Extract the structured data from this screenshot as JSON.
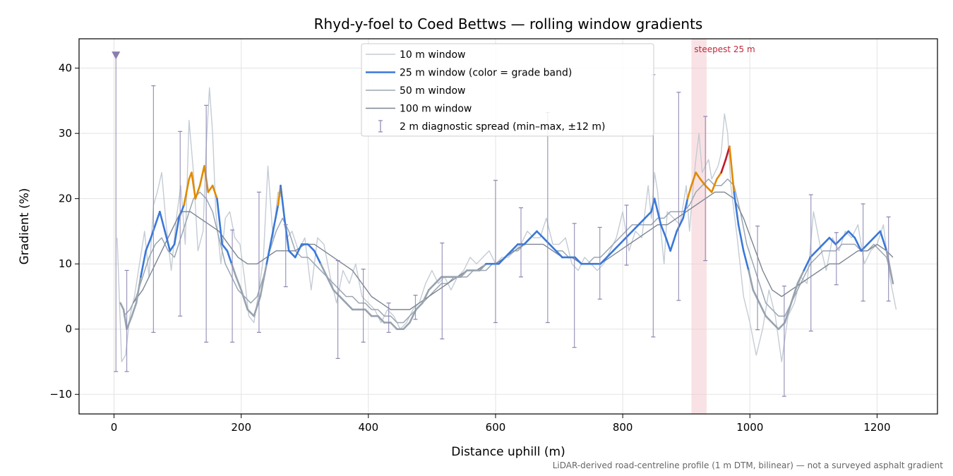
{
  "chart_data": {
    "type": "line",
    "title": "Rhyd-y-foel to Coed Bettws — rolling window gradients",
    "xlabel": "Distance uphill (m)",
    "ylabel": "Gradient (%)",
    "xlim": [
      -55,
      1295
    ],
    "ylim": [
      -13,
      44.5
    ],
    "xticks": [
      0,
      200,
      400,
      600,
      800,
      1000,
      1200
    ],
    "yticks": [
      -10,
      0,
      10,
      20,
      30,
      40
    ],
    "xtick_labels": [
      "0",
      "200",
      "400",
      "600",
      "800",
      "1000",
      "1200"
    ],
    "ytick_labels": [
      "−10",
      "0",
      "10",
      "20",
      "30",
      "40"
    ],
    "grid": true,
    "legend_position": "top-center",
    "footnote": "LiDAR-derived road-centreline profile (1 m DTM, bilinear) — not a surveyed asphalt gradient",
    "highlight": {
      "label": "steepest 25 m",
      "x0": 908,
      "x1": 932,
      "color": "#f4c6cc"
    },
    "start_marker": {
      "x": 3,
      "y": 42,
      "color": "#8a7db0"
    },
    "grade_band_colors": {
      "easy": "#3a78d8",
      "steep": "#e08a00",
      "very_steep": "#c0182c"
    },
    "series": [
      {
        "name": "10 m window",
        "color": "#c4ccd4",
        "width": 1.4,
        "x": [
          5,
          12,
          18,
          25,
          32,
          40,
          48,
          55,
          62,
          68,
          75,
          82,
          90,
          98,
          105,
          112,
          118,
          125,
          132,
          140,
          145,
          150,
          155,
          160,
          168,
          175,
          182,
          190,
          198,
          205,
          212,
          220,
          228,
          235,
          242,
          250,
          258,
          265,
          272,
          280,
          290,
          300,
          310,
          320,
          330,
          340,
          350,
          360,
          370,
          380,
          390,
          400,
          410,
          420,
          430,
          440,
          450,
          460,
          470,
          480,
          490,
          500,
          510,
          520,
          530,
          540,
          550,
          560,
          570,
          580,
          590,
          600,
          610,
          620,
          630,
          640,
          650,
          660,
          670,
          680,
          690,
          700,
          710,
          720,
          730,
          740,
          750,
          760,
          770,
          780,
          790,
          800,
          810,
          820,
          830,
          840,
          845,
          850,
          855,
          860,
          865,
          870,
          880,
          890,
          900,
          905,
          910,
          915,
          920,
          925,
          930,
          935,
          940,
          945,
          950,
          955,
          960,
          965,
          970,
          980,
          990,
          1000,
          1010,
          1020,
          1030,
          1040,
          1050,
          1060,
          1070,
          1080,
          1090,
          1100,
          1110,
          1120,
          1130,
          1140,
          1150,
          1160,
          1170,
          1180,
          1190,
          1200,
          1210,
          1220,
          1230
        ],
        "y": [
          14,
          -5,
          -4,
          2,
          5,
          10,
          15,
          8,
          19,
          21,
          24,
          16,
          9,
          17,
          22,
          13,
          32,
          24,
          12,
          15,
          28,
          37,
          30,
          18,
          10,
          17,
          18,
          14,
          13,
          8,
          2,
          1,
          6,
          11,
          25,
          14,
          21,
          20,
          14,
          15,
          12,
          14,
          6,
          14,
          13,
          8,
          4,
          9,
          7,
          10,
          5,
          4,
          3,
          1,
          3,
          2,
          0,
          1,
          3,
          4,
          7,
          9,
          7,
          8,
          6,
          8,
          9,
          11,
          10,
          11,
          12,
          10,
          11,
          11,
          12,
          13,
          15,
          14,
          14,
          17,
          13,
          13,
          14,
          10,
          9,
          11,
          10,
          9,
          10,
          12,
          14,
          18,
          12,
          15,
          14,
          22,
          17,
          24,
          21,
          15,
          10,
          18,
          17,
          16,
          22,
          15,
          21,
          26,
          30,
          24,
          25,
          26,
          23,
          24,
          25,
          27,
          33,
          30,
          22,
          14,
          5,
          1,
          -4,
          0,
          6,
          2,
          -5,
          2,
          4,
          8,
          7,
          18,
          13,
          9,
          14,
          12,
          15,
          14,
          16,
          10,
          12,
          13,
          16,
          8,
          3
        ]
      },
      {
        "name": "25 m window (color = grade band)",
        "color": "#3a78d8",
        "width": 2.6,
        "x": [
          10,
          15,
          20,
          28,
          35,
          42,
          50,
          58,
          65,
          72,
          80,
          88,
          95,
          102,
          110,
          118,
          122,
          128,
          135,
          142,
          148,
          155,
          162,
          170,
          178,
          185,
          192,
          200,
          210,
          220,
          230,
          240,
          250,
          258,
          262,
          268,
          275,
          285,
          295,
          305,
          315,
          325,
          335,
          345,
          355,
          365,
          375,
          385,
          395,
          405,
          415,
          425,
          435,
          445,
          455,
          465,
          475,
          485,
          495,
          505,
          515,
          525,
          535,
          545,
          555,
          565,
          575,
          585,
          595,
          605,
          615,
          625,
          635,
          645,
          655,
          665,
          675,
          685,
          695,
          705,
          715,
          725,
          735,
          745,
          755,
          765,
          775,
          785,
          795,
          805,
          815,
          825,
          835,
          845,
          850,
          855,
          860,
          868,
          875,
          885,
          895,
          902,
          908,
          915,
          922,
          930,
          940,
          948,
          955,
          962,
          968,
          975,
          982,
          990,
          998,
          1005,
          1015,
          1025,
          1035,
          1045,
          1055,
          1065,
          1075,
          1085,
          1095,
          1105,
          1115,
          1125,
          1135,
          1145,
          1155,
          1165,
          1175,
          1185,
          1195,
          1205,
          1215,
          1225
        ],
        "y": [
          4,
          3,
          0,
          2,
          4,
          8,
          12,
          14,
          16,
          18,
          15,
          12,
          13,
          17,
          19,
          23,
          24,
          20,
          22,
          25,
          21,
          22,
          20,
          13,
          12,
          10,
          8,
          6,
          3,
          2,
          5,
          10,
          15,
          19,
          22,
          17,
          12,
          11,
          13,
          13,
          12,
          10,
          8,
          6,
          5,
          4,
          3,
          3,
          3,
          2,
          2,
          1,
          1,
          0,
          0,
          1,
          3,
          4,
          6,
          7,
          8,
          8,
          8,
          8,
          9,
          9,
          9,
          10,
          10,
          10,
          11,
          12,
          13,
          13,
          14,
          15,
          14,
          13,
          12,
          11,
          11,
          11,
          10,
          10,
          10,
          10,
          11,
          12,
          13,
          14,
          15,
          16,
          17,
          18,
          20,
          18,
          16,
          14,
          12,
          15,
          17,
          20,
          22,
          24,
          23,
          22,
          21,
          23,
          24,
          26,
          28,
          21,
          16,
          12,
          9,
          6,
          4,
          2,
          1,
          0,
          1,
          4,
          7,
          9,
          11,
          12,
          13,
          14,
          13,
          14,
          15,
          14,
          12,
          13,
          14,
          15,
          12,
          7
        ]
      },
      {
        "name": "50 m window",
        "color": "#9ba6b2",
        "width": 1.5,
        "x": [
          15,
          25,
          35,
          45,
          55,
          65,
          75,
          85,
          95,
          105,
          115,
          125,
          135,
          145,
          155,
          165,
          175,
          185,
          195,
          205,
          215,
          225,
          235,
          245,
          255,
          265,
          275,
          285,
          295,
          305,
          315,
          325,
          335,
          345,
          355,
          365,
          375,
          385,
          395,
          405,
          415,
          425,
          435,
          445,
          455,
          465,
          475,
          485,
          495,
          505,
          515,
          525,
          535,
          545,
          555,
          565,
          575,
          585,
          595,
          605,
          615,
          625,
          635,
          645,
          655,
          665,
          675,
          685,
          695,
          705,
          715,
          725,
          735,
          745,
          755,
          765,
          775,
          785,
          795,
          805,
          815,
          825,
          835,
          845,
          855,
          865,
          875,
          885,
          895,
          905,
          915,
          925,
          935,
          945,
          955,
          965,
          975,
          985,
          995,
          1005,
          1015,
          1025,
          1035,
          1045,
          1055,
          1065,
          1075,
          1085,
          1095,
          1105,
          1115,
          1125,
          1135,
          1145,
          1155,
          1165,
          1175,
          1185,
          1195,
          1205,
          1215,
          1225
        ],
        "y": [
          2,
          3,
          5,
          8,
          11,
          13,
          14,
          12,
          11,
          14,
          17,
          20,
          21,
          20,
          18,
          14,
          10,
          8,
          6,
          5,
          4,
          5,
          8,
          12,
          15,
          17,
          15,
          12,
          11,
          11,
          10,
          9,
          8,
          7,
          6,
          5,
          5,
          4,
          4,
          3,
          3,
          2,
          2,
          1,
          1,
          2,
          3,
          4,
          5,
          6,
          7,
          7,
          8,
          8,
          8,
          9,
          9,
          9,
          10,
          10,
          11,
          12,
          12,
          13,
          14,
          15,
          14,
          13,
          12,
          12,
          11,
          11,
          10,
          10,
          11,
          11,
          12,
          13,
          14,
          15,
          16,
          16,
          16,
          16,
          17,
          17,
          18,
          18,
          18,
          19,
          21,
          22,
          23,
          22,
          22,
          23,
          22,
          18,
          13,
          10,
          7,
          4,
          3,
          2,
          2,
          4,
          6,
          8,
          10,
          11,
          12,
          12,
          12,
          13,
          13,
          13,
          12,
          12,
          13,
          12,
          11,
          7
        ]
      },
      {
        "name": "100 m window",
        "color": "#7c8592",
        "width": 1.4,
        "x": [
          30,
          45,
          60,
          75,
          90,
          105,
          120,
          135,
          150,
          165,
          180,
          195,
          210,
          225,
          240,
          255,
          270,
          285,
          300,
          315,
          330,
          345,
          360,
          375,
          390,
          405,
          420,
          435,
          450,
          465,
          480,
          495,
          510,
          525,
          540,
          555,
          570,
          585,
          600,
          615,
          630,
          645,
          660,
          675,
          690,
          705,
          720,
          735,
          750,
          765,
          780,
          795,
          810,
          825,
          840,
          855,
          870,
          885,
          900,
          915,
          930,
          945,
          960,
          975,
          990,
          1005,
          1020,
          1035,
          1050,
          1065,
          1080,
          1095,
          1110,
          1125,
          1140,
          1155,
          1170,
          1185,
          1200,
          1215,
          1225
        ],
        "y": [
          4,
          6,
          9,
          12,
          15,
          18,
          18,
          17,
          16,
          15,
          13,
          11,
          10,
          10,
          11,
          12,
          12,
          12,
          13,
          13,
          12,
          11,
          10,
          9,
          7,
          5,
          4,
          3,
          3,
          3,
          4,
          5,
          6,
          7,
          8,
          9,
          9,
          10,
          10,
          11,
          12,
          13,
          13,
          13,
          12,
          11,
          11,
          10,
          10,
          10,
          11,
          12,
          13,
          14,
          15,
          16,
          16,
          17,
          18,
          19,
          20,
          21,
          21,
          20,
          17,
          13,
          9,
          6,
          5,
          6,
          7,
          8,
          9,
          10,
          10,
          11,
          12,
          12,
          13,
          12,
          11
        ]
      }
    ],
    "diagnostic_spread": {
      "name": "2 m diagnostic spread (min–max, ±12 m)",
      "color": "#8a86b0",
      "points": [
        {
          "x": 3,
          "min": -6.5,
          "max": 42
        },
        {
          "x": 20,
          "min": -6.5,
          "max": 9
        },
        {
          "x": 62,
          "min": -0.5,
          "max": 37.3
        },
        {
          "x": 104,
          "min": 2,
          "max": 30.3
        },
        {
          "x": 145,
          "min": -2,
          "max": 34.3
        },
        {
          "x": 186,
          "min": -2,
          "max": 15.2
        },
        {
          "x": 228,
          "min": -0.5,
          "max": 21
        },
        {
          "x": 270,
          "min": 6.5,
          "max": 16
        },
        {
          "x": 352,
          "min": -4.5,
          "max": 10.5
        },
        {
          "x": 392,
          "min": -2,
          "max": 9.2
        },
        {
          "x": 432,
          "min": -0.5,
          "max": 4
        },
        {
          "x": 474,
          "min": 1.5,
          "max": 5.2
        },
        {
          "x": 516,
          "min": -1.5,
          "max": 13.2
        },
        {
          "x": 600,
          "min": 1,
          "max": 22.8
        },
        {
          "x": 640,
          "min": 8,
          "max": 18.6
        },
        {
          "x": 682,
          "min": 1,
          "max": 33.2
        },
        {
          "x": 724,
          "min": -2.8,
          "max": 16.2
        },
        {
          "x": 764,
          "min": 4.6,
          "max": 15.6
        },
        {
          "x": 806,
          "min": 9.8,
          "max": 19
        },
        {
          "x": 848,
          "min": -1.2,
          "max": 39
        },
        {
          "x": 888,
          "min": 4.4,
          "max": 36.3
        },
        {
          "x": 930,
          "min": 10.5,
          "max": 32.6
        },
        {
          "x": 1012,
          "min": -0.1,
          "max": 15.8
        },
        {
          "x": 1054,
          "min": -10.3,
          "max": 6.6
        },
        {
          "x": 1096,
          "min": -0.3,
          "max": 20.6
        },
        {
          "x": 1136,
          "min": 6.8,
          "max": 14.8
        },
        {
          "x": 1178,
          "min": 4.3,
          "max": 19.2
        },
        {
          "x": 1218,
          "min": 4.3,
          "max": 17.2
        }
      ]
    }
  }
}
